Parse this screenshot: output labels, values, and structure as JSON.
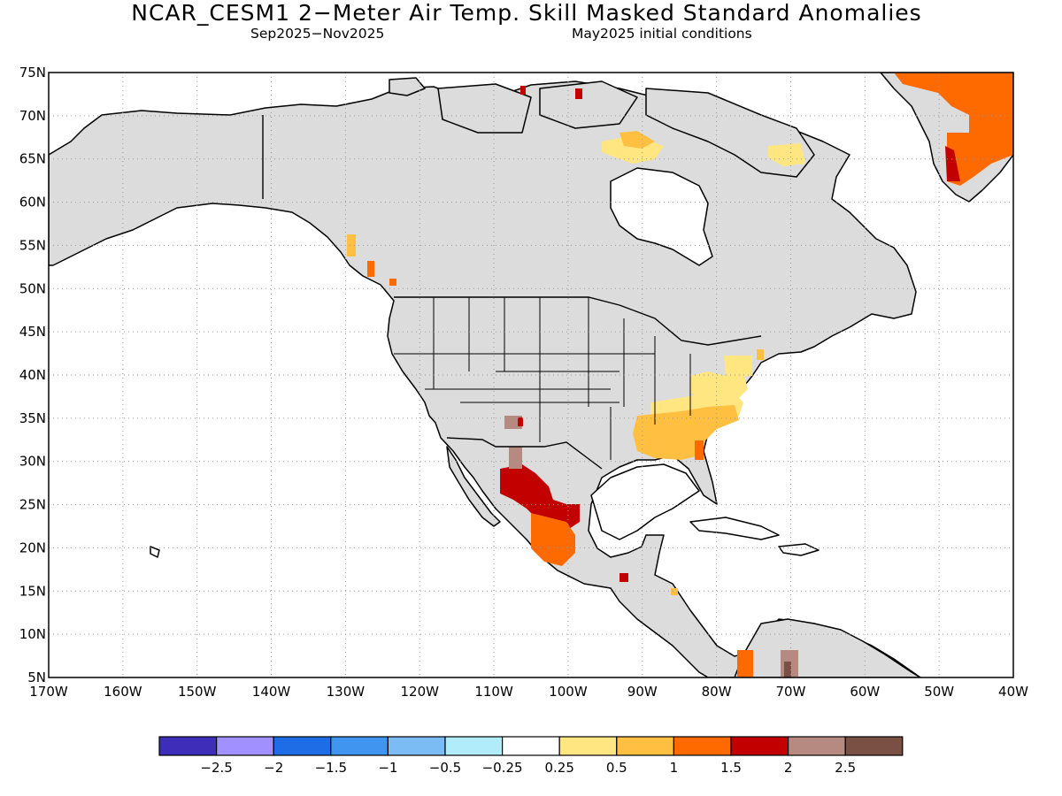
{
  "header": {
    "title": "NCAR_CESM1 2−Meter Air Temp. Skill Masked Standard Anomalies",
    "season": "Sep2025−Nov2025",
    "init": "May2025 initial conditions"
  },
  "axes": {
    "lat_labels": [
      "75N",
      "70N",
      "65N",
      "60N",
      "55N",
      "50N",
      "45N",
      "40N",
      "35N",
      "30N",
      "25N",
      "20N",
      "15N",
      "10N",
      "5N"
    ],
    "lon_labels": [
      "170W",
      "160W",
      "150W",
      "140W",
      "130W",
      "120W",
      "110W",
      "100W",
      "90W",
      "80W",
      "70W",
      "60W",
      "50W",
      "40W"
    ],
    "lat_range": [
      5,
      75
    ],
    "lon_range": [
      -170,
      -40
    ],
    "grid": "dotted"
  },
  "legend": {
    "colors": [
      "#3e2db8",
      "#a190ff",
      "#1f6de6",
      "#3f95f0",
      "#7bbcf5",
      "#b0ecfa",
      "#ffffff",
      "#ffe680",
      "#ffbf40",
      "#ff6a00",
      "#c20000",
      "#b68a80",
      "#7a5044"
    ],
    "labels": [
      "−2.5",
      "−2",
      "−1.5",
      "−1",
      "−0.5",
      "−0.25",
      "0.25",
      "0.5",
      "1",
      "1.5",
      "2",
      "2.5"
    ]
  },
  "colors": {
    "land_masked": "#dcdcdc",
    "coast": "#000000"
  }
}
